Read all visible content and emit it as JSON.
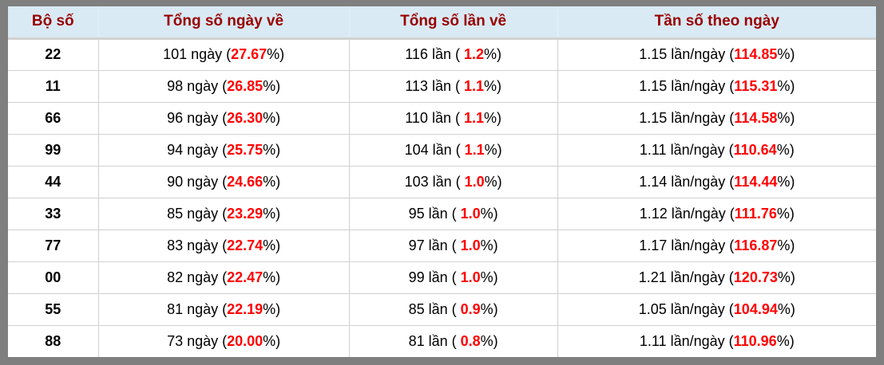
{
  "colors": {
    "frame_gray": "#7f7f7f",
    "header_background": "#d9eaf4",
    "header_text": "#990000",
    "highlight_red": "#ff0000",
    "grid_line": "#d0d0d0"
  },
  "table": {
    "headers": [
      {
        "label": "Bộ số"
      },
      {
        "label": "Tổng số ngày về"
      },
      {
        "label": "Tổng số lần về"
      },
      {
        "label": "Tần số theo ngày"
      }
    ],
    "rows": [
      {
        "bo_so": "22",
        "ngay": {
          "pre": "101 ngày (",
          "value": "27.67",
          "post": "%)"
        },
        "lan": {
          "pre": "116 lần ( ",
          "value": "1.2",
          "post": "%)"
        },
        "tan_so": {
          "pre": "1.15 lần/ngày (",
          "value": "114.85",
          "post": "%)"
        }
      },
      {
        "bo_so": "11",
        "ngay": {
          "pre": "98 ngày (",
          "value": "26.85",
          "post": "%)"
        },
        "lan": {
          "pre": "113 lần ( ",
          "value": "1.1",
          "post": "%)"
        },
        "tan_so": {
          "pre": "1.15 lần/ngày (",
          "value": "115.31",
          "post": "%)"
        }
      },
      {
        "bo_so": "66",
        "ngay": {
          "pre": "96 ngày (",
          "value": "26.30",
          "post": "%)"
        },
        "lan": {
          "pre": "110 lần ( ",
          "value": "1.1",
          "post": "%)"
        },
        "tan_so": {
          "pre": "1.15 lần/ngày (",
          "value": "114.58",
          "post": "%)"
        }
      },
      {
        "bo_so": "99",
        "ngay": {
          "pre": "94 ngày (",
          "value": "25.75",
          "post": "%)"
        },
        "lan": {
          "pre": "104 lần ( ",
          "value": "1.1",
          "post": "%)"
        },
        "tan_so": {
          "pre": "1.11 lần/ngày (",
          "value": "110.64",
          "post": "%)"
        }
      },
      {
        "bo_so": "44",
        "ngay": {
          "pre": "90 ngày (",
          "value": "24.66",
          "post": "%)"
        },
        "lan": {
          "pre": "103 lần ( ",
          "value": "1.0",
          "post": "%)"
        },
        "tan_so": {
          "pre": "1.14 lần/ngày (",
          "value": "114.44",
          "post": "%)"
        }
      },
      {
        "bo_so": "33",
        "ngay": {
          "pre": "85 ngày (",
          "value": "23.29",
          "post": "%)"
        },
        "lan": {
          "pre": "95 lần ( ",
          "value": "1.0",
          "post": "%)"
        },
        "tan_so": {
          "pre": "1.12 lần/ngày (",
          "value": "111.76",
          "post": "%)"
        }
      },
      {
        "bo_so": "77",
        "ngay": {
          "pre": "83 ngày (",
          "value": "22.74",
          "post": "%)"
        },
        "lan": {
          "pre": "97 lần ( ",
          "value": "1.0",
          "post": "%)"
        },
        "tan_so": {
          "pre": "1.17 lần/ngày (",
          "value": "116.87",
          "post": "%)"
        }
      },
      {
        "bo_so": "00",
        "ngay": {
          "pre": "82 ngày (",
          "value": "22.47",
          "post": "%)"
        },
        "lan": {
          "pre": "99 lần ( ",
          "value": "1.0",
          "post": "%)"
        },
        "tan_so": {
          "pre": "1.21 lần/ngày (",
          "value": "120.73",
          "post": "%)"
        }
      },
      {
        "bo_so": "55",
        "ngay": {
          "pre": "81 ngày (",
          "value": "22.19",
          "post": "%)"
        },
        "lan": {
          "pre": "85 lần ( ",
          "value": "0.9",
          "post": "%)"
        },
        "tan_so": {
          "pre": "1.05 lần/ngày (",
          "value": "104.94",
          "post": "%)"
        }
      },
      {
        "bo_so": "88",
        "ngay": {
          "pre": "73 ngày (",
          "value": "20.00",
          "post": "%)"
        },
        "lan": {
          "pre": "81 lần ( ",
          "value": "0.8",
          "post": "%)"
        },
        "tan_so": {
          "pre": "1.11 lần/ngày (",
          "value": "110.96",
          "post": "%)"
        }
      }
    ]
  }
}
